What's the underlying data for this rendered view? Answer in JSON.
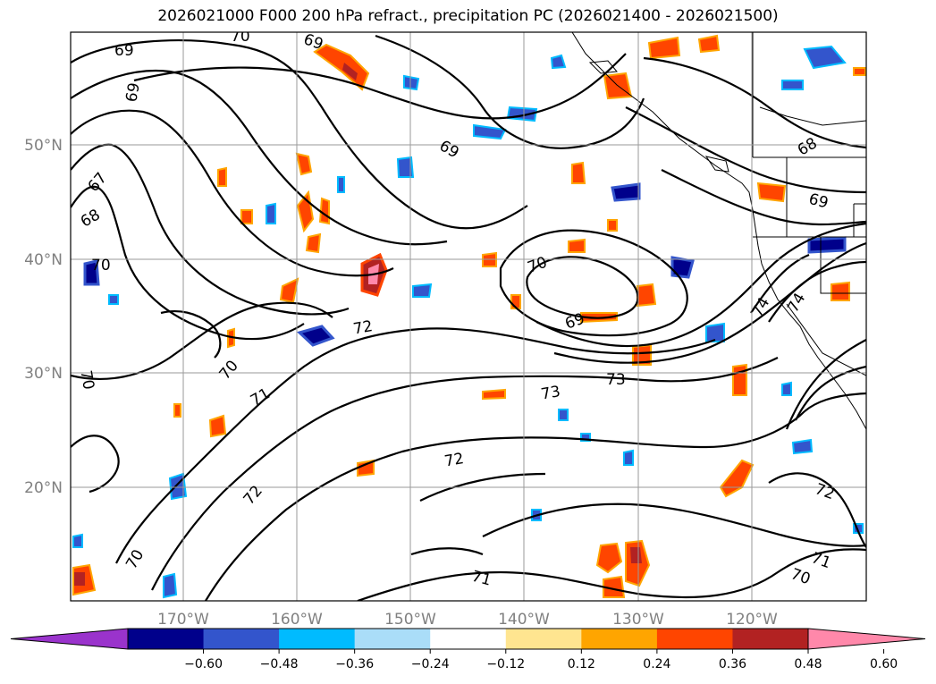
{
  "title": "2026021000 F000 200 hPa refract., precipitation PC (2026021400 - 2026021500)",
  "lat_labels": [
    "50°N",
    "40°N",
    "30°N",
    "20°N"
  ],
  "lon_labels": [
    "170°W",
    "160°W",
    "150°W",
    "140°W",
    "130°W",
    "120°W"
  ],
  "contour_labels": [
    "69",
    "70",
    "69",
    "69",
    "67",
    "68",
    "70",
    "70",
    "71",
    "72",
    "72",
    "73",
    "73",
    "72",
    "70",
    "69",
    "70",
    "68",
    "69",
    "74",
    "74",
    "72",
    "71",
    "70",
    "71",
    "70",
    "69"
  ],
  "colorbar": {
    "colors": [
      "#9a33cc",
      "#00008b",
      "#3355cc",
      "#00bbff",
      "#aaddf8",
      "#ffffff",
      "#ffe590",
      "#ffa500",
      "#ff4500",
      "#b22222",
      "#ff88aa"
    ],
    "tick_labels": [
      "−0.60",
      "−0.48",
      "−0.36",
      "−0.24",
      "−0.12",
      "0.12",
      "0.24",
      "0.36",
      "0.48",
      "0.60"
    ]
  }
}
